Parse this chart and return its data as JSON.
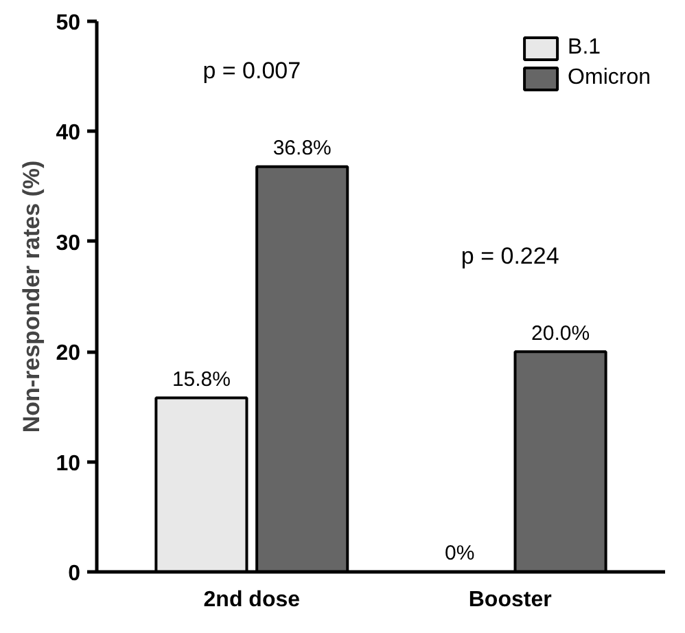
{
  "chart_data": {
    "type": "bar",
    "ylabel": "Non-responder rates (%)",
    "categories": [
      "2nd dose",
      "Booster"
    ],
    "series": [
      {
        "name": "B.1",
        "color": "#e8e8e8",
        "values": [
          15.8,
          0
        ],
        "value_labels": [
          "15.8%",
          "0%"
        ]
      },
      {
        "name": "Omicron",
        "color": "#666666",
        "values": [
          36.8,
          20.0
        ],
        "value_labels": [
          "36.8%",
          "20.0%"
        ]
      }
    ],
    "ylim": [
      0,
      50
    ],
    "yticks": [
      0,
      10,
      20,
      30,
      40,
      50
    ],
    "annotations": [
      "p = 0.007",
      "p = 0.224"
    ],
    "grid": false,
    "legend": "top right"
  }
}
